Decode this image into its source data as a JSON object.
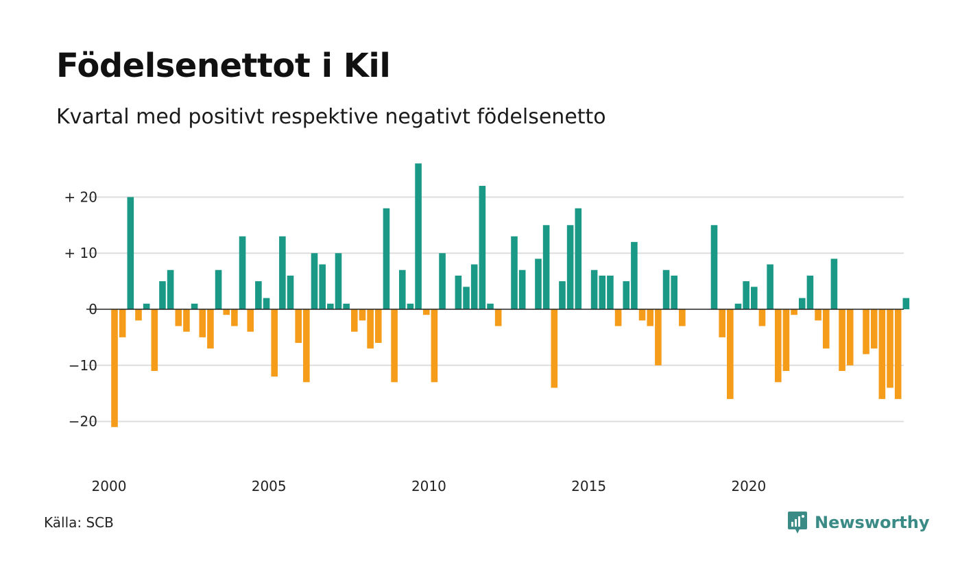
{
  "header": {
    "title": "Födelsenettot i Kil",
    "subtitle": "Kvartal med positivt respektive negativt födelsenetto"
  },
  "footer": {
    "source": "Källa: SCB",
    "brand": "Newsworthy"
  },
  "colors": {
    "positive": "#1a9987",
    "negative": "#f59c1a",
    "grid": "#dddddd",
    "brand": "#3a8a86"
  },
  "chart_data": {
    "type": "bar",
    "title": "Födelsenettot i Kil",
    "subtitle": "Kvartal med positivt respektive negativt födelsenetto",
    "x_start": "2000 Q1",
    "x_ticks": [
      "2000",
      "2005",
      "2010",
      "2015",
      "2020"
    ],
    "y_ticks": [
      {
        "value": 20,
        "label": "+ 20"
      },
      {
        "value": 10,
        "label": "+ 10"
      },
      {
        "value": 0,
        "label": "0"
      },
      {
        "value": -10,
        "label": "−10"
      },
      {
        "value": -20,
        "label": "−20"
      }
    ],
    "ylim": [
      -25,
      26
    ],
    "grid": true,
    "values": [
      -21,
      -5,
      20,
      -2,
      1,
      -11,
      5,
      7,
      -3,
      -4,
      1,
      -5,
      -7,
      7,
      -1,
      -3,
      13,
      -4,
      5,
      2,
      -12,
      13,
      6,
      -6,
      -13,
      10,
      8,
      1,
      10,
      1,
      -4,
      -2,
      -7,
      -6,
      18,
      -13,
      7,
      1,
      26,
      -1,
      -13,
      10,
      0,
      6,
      4,
      8,
      22,
      1,
      -3,
      0,
      13,
      7,
      0,
      9,
      15,
      -14,
      5,
      15,
      18,
      0,
      7,
      6,
      6,
      -3,
      5,
      12,
      -2,
      -3,
      -10,
      7,
      6,
      -3,
      0,
      0,
      0,
      15,
      -5,
      -16,
      1,
      5,
      4,
      -3,
      8,
      -13,
      -11,
      -1,
      2,
      6,
      -2,
      -7,
      9,
      -11,
      -10,
      0,
      -8,
      -7,
      -16,
      -14,
      -16,
      2
    ]
  }
}
